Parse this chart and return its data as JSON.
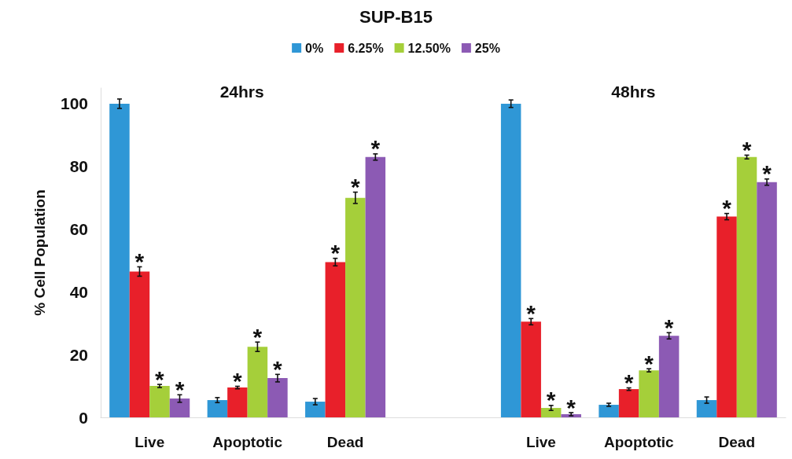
{
  "chart_data": {
    "type": "bar",
    "title": "SUP-B15",
    "categories": [
      "Live",
      "Apoptotic",
      "Dead",
      null,
      "Live",
      "Apoptotic",
      "Dead"
    ],
    "series": [
      {
        "name": "0%",
        "color": "#2f97d6",
        "values": [
          100,
          5.5,
          5,
          null,
          100,
          4,
          5.5
        ],
        "errors": [
          1.5,
          0.8,
          1,
          null,
          1.2,
          0.5,
          1
        ],
        "value_labels": [
          null,
          null,
          null,
          null,
          null,
          null,
          null
        ]
      },
      {
        "name": "6.25%",
        "color": "#e8202a",
        "values": [
          46.5,
          9.5,
          49.5,
          null,
          30.5,
          9,
          64
        ],
        "errors": [
          1.5,
          0.4,
          1.2,
          null,
          1,
          0.4,
          1
        ],
        "value_labels": [
          "*",
          "*",
          "*",
          null,
          "*",
          "*",
          "*"
        ]
      },
      {
        "name": "12.50%",
        "color": "#a5cf3a",
        "values": [
          10,
          22.5,
          70,
          null,
          3,
          15,
          83
        ],
        "errors": [
          0.5,
          1.5,
          1.8,
          null,
          0.8,
          0.5,
          0.6
        ],
        "value_labels": [
          "*",
          "*",
          "*",
          null,
          "*",
          "*",
          "*"
        ]
      },
      {
        "name": "25%",
        "color": "#8c5ab4",
        "values": [
          6,
          12.5,
          83,
          null,
          1,
          26,
          75
        ],
        "errors": [
          1.2,
          1.2,
          1,
          null,
          0.5,
          1,
          1
        ],
        "value_labels": [
          "*",
          "*",
          "*",
          null,
          "*",
          "*",
          "*"
        ]
      }
    ],
    "ylabel": "% Cell Population",
    "ylim": [
      0,
      105
    ],
    "yticks": [
      0,
      20,
      40,
      60,
      80,
      100
    ],
    "annotations": [
      "24hrs",
      "48hrs"
    ],
    "legend": "top",
    "grid": false
  }
}
